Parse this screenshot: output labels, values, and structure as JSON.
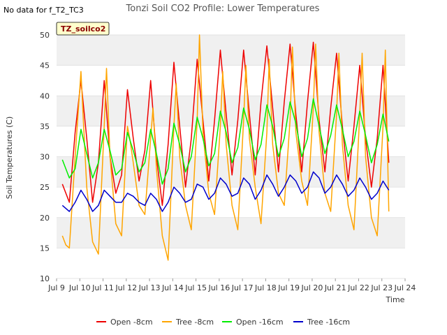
{
  "no_data_note": "No data for f_T2_TC3",
  "site_tag": "TZ_soilco2",
  "chart_data": {
    "type": "line",
    "title": "Tonzi Soil CO2 Profile: Lower Temperatures",
    "xlabel": "Time",
    "ylabel": "Soil Temperatures (C)",
    "xlim": [
      9,
      24
    ],
    "ylim": [
      10,
      50
    ],
    "xticks": [
      9,
      10,
      11,
      12,
      13,
      14,
      15,
      16,
      17,
      18,
      19,
      20,
      21,
      22,
      23,
      24
    ],
    "xtick_labels": [
      "Jul 9",
      "Jul 10",
      "Jul 11",
      "Jul 12",
      "Jul 13",
      "Jul 14",
      "Jul 15",
      "Jul 16",
      "Jul 17",
      "Jul 18",
      "Jul 19",
      "Jul 20",
      "Jul 21",
      "Jul 22",
      "Jul 23",
      "Jul 24"
    ],
    "yticks": [
      10,
      15,
      20,
      25,
      30,
      35,
      40,
      45,
      50
    ],
    "grid": "horizontal bands",
    "legend_position": "bottom",
    "series": [
      {
        "name": "Open -8cm",
        "color": "#ee0000",
        "x": [
          9.25,
          9.55,
          9.8,
          10.05,
          10.3,
          10.55,
          10.8,
          11.05,
          11.3,
          11.55,
          11.8,
          12.05,
          12.3,
          12.55,
          12.8,
          13.05,
          13.3,
          13.55,
          13.8,
          14.05,
          14.3,
          14.55,
          14.8,
          15.05,
          15.3,
          15.55,
          15.8,
          16.05,
          16.3,
          16.55,
          16.8,
          17.05,
          17.3,
          17.55,
          17.8,
          18.05,
          18.3,
          18.55,
          18.8,
          19.05,
          19.3,
          19.55,
          19.8,
          20.05,
          20.3,
          20.55,
          20.8,
          21.05,
          21.3,
          21.55,
          21.8,
          22.05,
          22.3,
          22.55,
          22.8,
          23.05,
          23.3
        ],
        "y": [
          25.5,
          22.5,
          34.0,
          42.5,
          33.0,
          22.5,
          29.0,
          42.5,
          30.0,
          24.0,
          27.0,
          41.0,
          33.0,
          26.0,
          31.0,
          42.5,
          30.0,
          22.0,
          32.0,
          45.5,
          35.0,
          25.0,
          33.0,
          46.0,
          36.0,
          26.0,
          36.0,
          47.5,
          37.0,
          27.0,
          36.0,
          47.5,
          37.0,
          27.0,
          39.0,
          48.2,
          38.0,
          27.5,
          39.0,
          48.5,
          37.0,
          27.5,
          39.0,
          48.8,
          36.0,
          27.5,
          38.0,
          47.0,
          35.0,
          26.0,
          35.0,
          45.0,
          33.0,
          25.0,
          33.0,
          45.0,
          29.0
        ]
      },
      {
        "name": "Tree -8cm",
        "color": "#ffa500",
        "x": [
          9.25,
          9.4,
          9.55,
          9.8,
          10.05,
          10.15,
          10.3,
          10.55,
          10.8,
          11.05,
          11.15,
          11.3,
          11.55,
          11.8,
          12.05,
          12.15,
          12.3,
          12.55,
          12.8,
          13.05,
          13.15,
          13.3,
          13.55,
          13.8,
          14.05,
          14.15,
          14.3,
          14.55,
          14.8,
          15.05,
          15.15,
          15.3,
          15.55,
          15.8,
          16.05,
          16.15,
          16.3,
          16.55,
          16.8,
          17.05,
          17.15,
          17.3,
          17.55,
          17.8,
          18.05,
          18.15,
          18.3,
          18.55,
          18.8,
          19.05,
          19.15,
          19.3,
          19.55,
          19.8,
          20.05,
          20.15,
          20.3,
          20.55,
          20.8,
          21.05,
          21.15,
          21.3,
          21.55,
          21.8,
          22.05,
          22.15,
          22.3,
          22.55,
          22.8,
          23.05,
          23.15,
          23.3
        ],
        "y": [
          17.0,
          15.5,
          15.0,
          30.0,
          44.0,
          36.0,
          25.0,
          16.0,
          14.0,
          35.0,
          44.5,
          30.0,
          19.0,
          17.0,
          35.0,
          33.0,
          29.0,
          22.0,
          20.5,
          33.0,
          38.0,
          28.0,
          17.0,
          13.0,
          35.0,
          42.0,
          30.0,
          22.0,
          18.0,
          36.0,
          50.0,
          34.0,
          24.0,
          20.5,
          35.0,
          44.0,
          32.0,
          22.0,
          18.0,
          36.0,
          45.0,
          33.0,
          25.0,
          19.0,
          34.0,
          46.0,
          32.0,
          24.0,
          22.0,
          36.0,
          48.0,
          34.0,
          26.0,
          22.0,
          38.0,
          48.5,
          34.0,
          24.0,
          21.0,
          37.0,
          47.0,
          32.0,
          22.0,
          18.0,
          37.0,
          47.0,
          30.0,
          20.0,
          17.0,
          35.0,
          47.5,
          21.0
        ]
      },
      {
        "name": "Open -16cm",
        "color": "#00ee00",
        "x": [
          9.25,
          9.55,
          9.8,
          10.05,
          10.3,
          10.55,
          10.8,
          11.05,
          11.3,
          11.55,
          11.8,
          12.05,
          12.3,
          12.55,
          12.8,
          13.05,
          13.3,
          13.55,
          13.8,
          14.05,
          14.3,
          14.55,
          14.8,
          15.05,
          15.3,
          15.55,
          15.8,
          16.05,
          16.3,
          16.55,
          16.8,
          17.05,
          17.3,
          17.55,
          17.8,
          18.05,
          18.3,
          18.55,
          18.8,
          19.05,
          19.3,
          19.55,
          19.8,
          20.05,
          20.3,
          20.55,
          20.8,
          21.05,
          21.3,
          21.55,
          21.8,
          22.05,
          22.3,
          22.55,
          22.8,
          23.05,
          23.3
        ],
        "y": [
          29.5,
          26.5,
          28.0,
          34.5,
          30.5,
          26.5,
          29.0,
          34.5,
          31.0,
          27.0,
          28.0,
          34.0,
          31.0,
          27.5,
          29.0,
          34.5,
          30.5,
          25.5,
          28.0,
          35.5,
          32.0,
          27.5,
          30.0,
          36.5,
          33.0,
          28.5,
          30.5,
          37.5,
          34.0,
          29.0,
          31.5,
          38.0,
          34.5,
          29.5,
          32.0,
          38.5,
          35.0,
          30.0,
          33.0,
          39.0,
          35.5,
          30.0,
          33.0,
          39.5,
          35.0,
          30.5,
          33.5,
          38.5,
          34.5,
          30.0,
          32.5,
          37.5,
          33.5,
          29.0,
          32.0,
          37.0,
          32.5
        ]
      },
      {
        "name": "Tree -16cm",
        "color": "#0000cc",
        "x": [
          9.25,
          9.55,
          9.8,
          10.05,
          10.3,
          10.55,
          10.8,
          11.05,
          11.3,
          11.55,
          11.8,
          12.05,
          12.3,
          12.55,
          12.8,
          13.05,
          13.3,
          13.55,
          13.8,
          14.05,
          14.3,
          14.55,
          14.8,
          15.05,
          15.3,
          15.55,
          15.8,
          16.05,
          16.3,
          16.55,
          16.8,
          17.05,
          17.3,
          17.55,
          17.8,
          18.05,
          18.3,
          18.55,
          18.8,
          19.05,
          19.3,
          19.55,
          19.8,
          20.05,
          20.3,
          20.55,
          20.8,
          21.05,
          21.3,
          21.55,
          21.8,
          22.05,
          22.3,
          22.55,
          22.8,
          23.05,
          23.3
        ],
        "y": [
          22.0,
          21.0,
          22.5,
          24.5,
          23.0,
          21.0,
          22.0,
          24.5,
          23.5,
          22.5,
          22.5,
          24.0,
          23.5,
          22.5,
          22.0,
          24.0,
          23.0,
          21.0,
          22.5,
          25.0,
          24.0,
          22.5,
          23.0,
          25.5,
          25.0,
          23.0,
          24.0,
          26.5,
          25.5,
          23.5,
          24.0,
          26.5,
          25.5,
          23.0,
          24.5,
          27.0,
          25.5,
          23.5,
          25.0,
          27.0,
          26.0,
          24.0,
          25.0,
          27.5,
          26.5,
          24.0,
          25.0,
          27.0,
          25.5,
          23.5,
          24.5,
          26.5,
          25.0,
          23.0,
          24.0,
          26.0,
          24.5
        ]
      }
    ]
  }
}
